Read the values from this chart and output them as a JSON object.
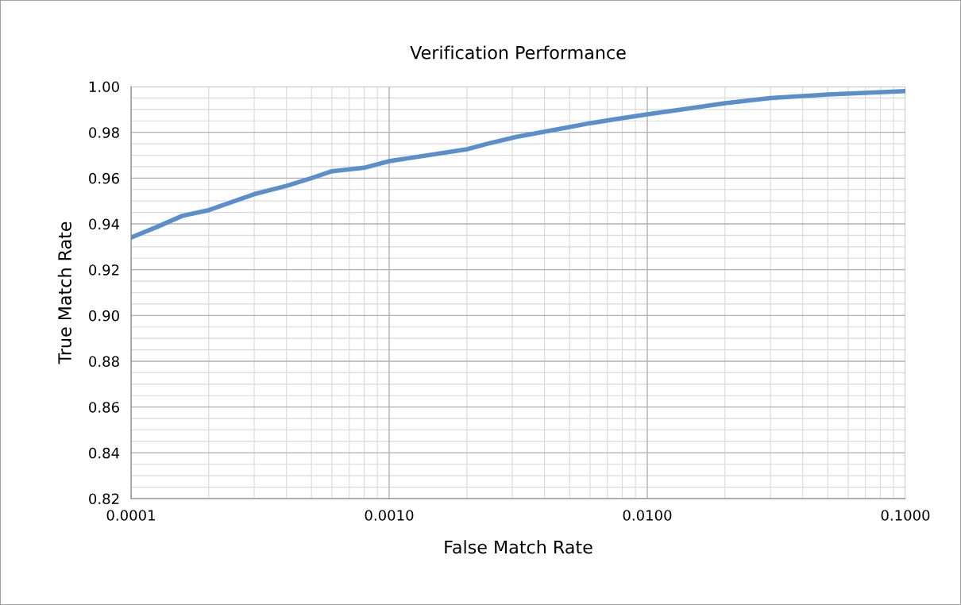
{
  "chart_data": {
    "type": "line",
    "title": "Verification Performance",
    "xlabel": "False Match Rate",
    "ylabel": "True Match Rate",
    "log": "x",
    "x": [
      0.0001,
      0.000128,
      0.000158,
      0.0002,
      0.0003,
      0.0004,
      0.0005,
      0.0006,
      0.0008,
      0.001,
      0.002,
      0.0024,
      0.0031,
      0.005,
      0.006,
      0.01,
      0.0137,
      0.02,
      0.03,
      0.05,
      0.1
    ],
    "series": [
      {
        "color": "#5b8fcb",
        "values": [
          0.934,
          0.939,
          0.9435,
          0.946,
          0.953,
          0.9566,
          0.96,
          0.963,
          0.9645,
          0.9674,
          0.9726,
          0.975,
          0.978,
          0.9823,
          0.984,
          0.9879,
          0.99,
          0.9927,
          0.995,
          0.9965,
          0.998
        ]
      }
    ],
    "xlim": [
      0.0001,
      0.1
    ],
    "xticks": [
      {
        "value": 0.0001,
        "label": "0.0001"
      },
      {
        "value": 0.001,
        "label": "0.0010"
      },
      {
        "value": 0.01,
        "label": "0.0100"
      },
      {
        "value": 0.1,
        "label": "0.1000"
      }
    ],
    "ylim": [
      0.82,
      1.0
    ],
    "yticks": [
      0.82,
      0.84,
      0.86,
      0.88,
      {
        "value": 0.9,
        "label": "0.90"
      },
      0.92,
      0.94,
      0.96,
      0.98,
      {
        "value": 1.0,
        "label": "1.00"
      }
    ],
    "grid": true,
    "line_style": "solid",
    "marker": "none"
  }
}
